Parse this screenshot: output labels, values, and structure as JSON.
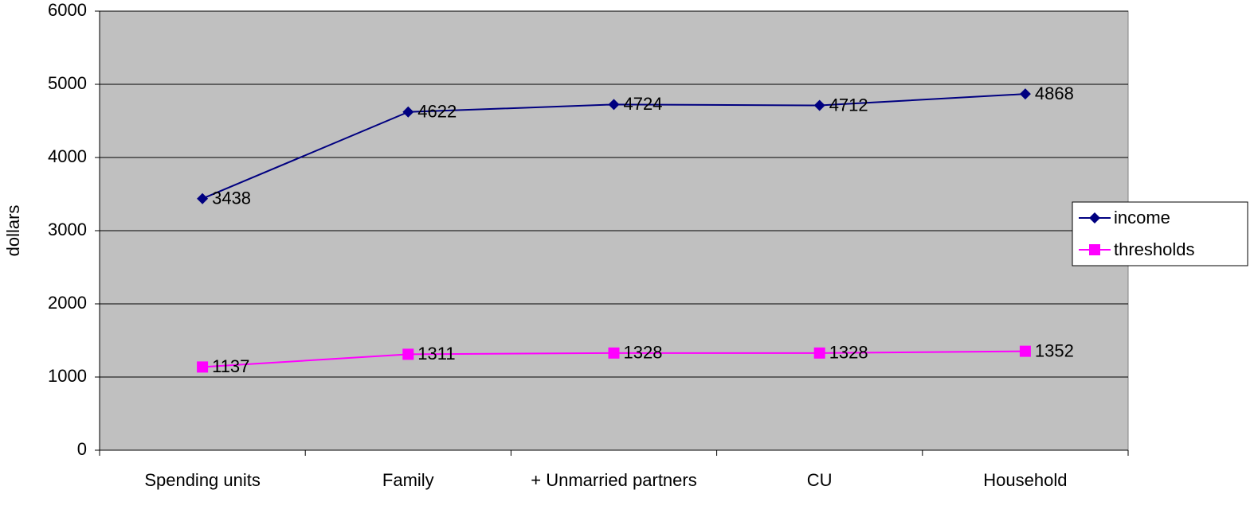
{
  "chart_data": {
    "type": "line",
    "y_label": "dollars",
    "categories": [
      "Spending units",
      "Family",
      "+ Unmarried partners",
      "CU",
      "Household"
    ],
    "series": [
      {
        "name": "income",
        "color": "#000080",
        "marker": "diamond",
        "values": [
          3438,
          4622,
          4724,
          4712,
          4868
        ]
      },
      {
        "name": "thresholds",
        "color": "#FF00FF",
        "marker": "square",
        "values": [
          1137,
          1311,
          1328,
          1328,
          1352
        ]
      }
    ],
    "ylim": [
      0,
      6000
    ],
    "yticks": [
      0,
      1000,
      2000,
      3000,
      4000,
      5000,
      6000
    ],
    "grid": true,
    "legend": "right",
    "plot_background": "#C0C0C0"
  }
}
